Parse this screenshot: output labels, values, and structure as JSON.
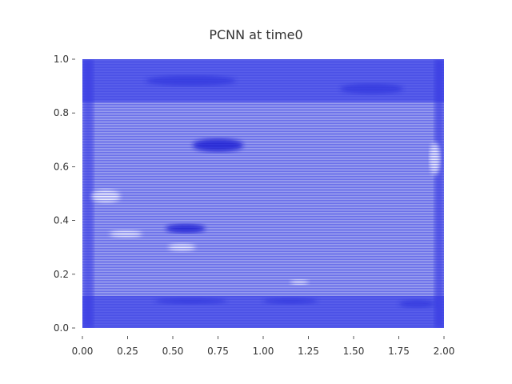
{
  "chart_data": {
    "type": "heatmap",
    "title": "PCNN at time0",
    "xlabel": "",
    "ylabel": "",
    "xlim": [
      0.0,
      2.0
    ],
    "ylim": [
      0.0,
      1.0
    ],
    "x_ticks": [
      "0.00",
      "0.25",
      "0.50",
      "0.75",
      "1.00",
      "1.25",
      "1.50",
      "1.75",
      "2.00"
    ],
    "y_ticks": [
      "0.0",
      "0.2",
      "0.4",
      "0.6",
      "0.8",
      "1.0"
    ],
    "grid": false,
    "colors": {
      "base": "#6d73e8",
      "dark": "#1010d6",
      "light": "#ffffff"
    },
    "bands": [
      {
        "y_from": 0.0,
        "y_to": 0.12,
        "intensity": "dark"
      },
      {
        "y_from": 0.12,
        "y_to": 0.84,
        "intensity": "medium"
      },
      {
        "y_from": 0.84,
        "y_to": 1.0,
        "intensity": "dark"
      }
    ],
    "features": [
      {
        "x": 0.75,
        "y": 0.68,
        "w": 0.28,
        "h": 0.05,
        "kind": "dark-blob"
      },
      {
        "x": 0.57,
        "y": 0.37,
        "w": 0.22,
        "h": 0.035,
        "kind": "dark-blob"
      },
      {
        "x": 0.13,
        "y": 0.49,
        "w": 0.16,
        "h": 0.05,
        "kind": "light-patch"
      },
      {
        "x": 0.24,
        "y": 0.35,
        "w": 0.18,
        "h": 0.03,
        "kind": "light-patch"
      },
      {
        "x": 0.6,
        "y": 0.92,
        "w": 0.5,
        "h": 0.04,
        "kind": "dark-streak"
      },
      {
        "x": 1.6,
        "y": 0.89,
        "w": 0.35,
        "h": 0.04,
        "kind": "dark-streak"
      },
      {
        "x": 0.6,
        "y": 0.1,
        "w": 0.4,
        "h": 0.025,
        "kind": "dark-streak"
      },
      {
        "x": 1.15,
        "y": 0.1,
        "w": 0.3,
        "h": 0.025,
        "kind": "dark-streak"
      },
      {
        "x": 1.85,
        "y": 0.09,
        "w": 0.2,
        "h": 0.03,
        "kind": "dark-streak"
      },
      {
        "x": 1.2,
        "y": 0.17,
        "w": 0.1,
        "h": 0.02,
        "kind": "light-patch"
      },
      {
        "x": 0.55,
        "y": 0.3,
        "w": 0.15,
        "h": 0.03,
        "kind": "light-patch"
      },
      {
        "x": 1.95,
        "y": 0.63,
        "w": 0.06,
        "h": 0.12,
        "kind": "light-patch"
      }
    ]
  }
}
